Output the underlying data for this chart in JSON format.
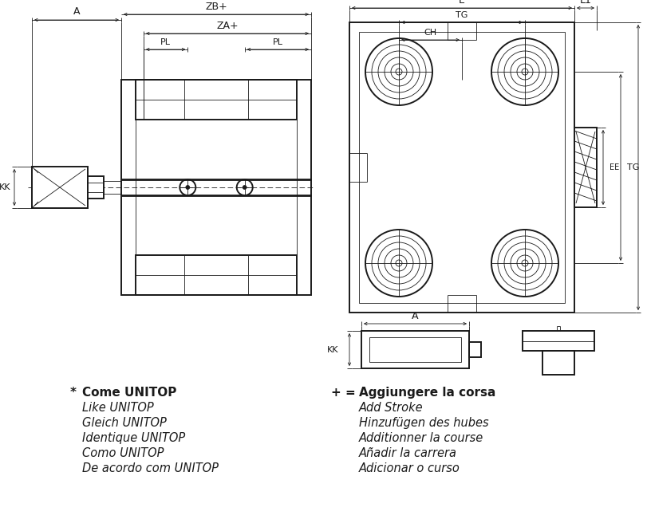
{
  "bg_color": "#ffffff",
  "line_color": "#1a1a1a",
  "fig_width": 8.11,
  "fig_height": 6.61,
  "left_texts": [
    "* Come UNITOP",
    "Like UNITOP",
    "Gleich UNITOP",
    "Identique UNITOP",
    "Como UNITOP",
    "De acordo com UNITOP"
  ],
  "left_bold": [
    true,
    false,
    false,
    false,
    false,
    false
  ],
  "right_texts": [
    "+ = Aggiungere la corsa",
    "Add Stroke",
    "Hinzufügen des hubes",
    "Additionner la course",
    "Añadir la carrera",
    "Adicionar o curso"
  ],
  "right_bold": [
    true,
    false,
    false,
    false,
    false,
    false
  ],
  "lw_main": 1.4,
  "lw_thin": 0.6,
  "lw_dim": 0.6,
  "lw_thick": 2.0
}
